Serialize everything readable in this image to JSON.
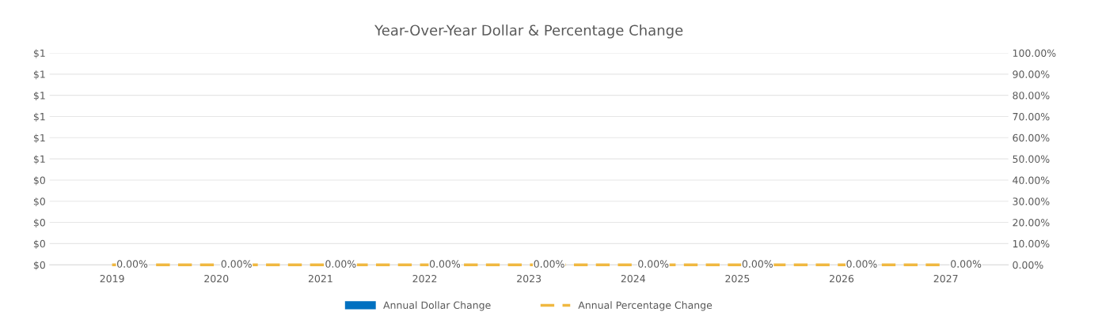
{
  "chart_data": {
    "type": "bar",
    "title": "Year-Over-Year Dollar & Percentage Change",
    "categories": [
      "2019",
      "2020",
      "2021",
      "2022",
      "2023",
      "2024",
      "2025",
      "2026",
      "2027"
    ],
    "series": [
      {
        "name": "Annual Dollar Change",
        "color": "#0070c0",
        "values": [
          0,
          0,
          0,
          0,
          0,
          0,
          0,
          0,
          0
        ]
      },
      {
        "name": "Annual Percentage Change",
        "type": "line",
        "axis": "y2",
        "color": "#f0b840",
        "line_style": "dashed",
        "values": [
          0,
          0,
          0,
          0,
          0,
          0,
          0,
          0,
          0
        ],
        "value_labels": [
          "0.00%",
          "0.00%",
          "0.00%",
          "0.00%",
          "0.00%",
          "0.00%",
          "0.00%",
          "0.00%",
          "0.00%"
        ]
      }
    ],
    "ylim": [
      0,
      1
    ],
    "yticks": [
      {
        "value": 0,
        "label": "$0"
      },
      {
        "value": 0.1,
        "label": "$0"
      },
      {
        "value": 0.2,
        "label": "$0"
      },
      {
        "value": 0.3,
        "label": "$0"
      },
      {
        "value": 0.4,
        "label": "$0"
      },
      {
        "value": 0.5,
        "label": "$1"
      },
      {
        "value": 0.6,
        "label": "$1"
      },
      {
        "value": 0.7,
        "label": "$1"
      },
      {
        "value": 0.8,
        "label": "$1"
      },
      {
        "value": 0.9,
        "label": "$1"
      },
      {
        "value": 1,
        "label": "$1"
      }
    ],
    "y2lim": [
      0,
      100
    ],
    "y2ticks": [
      {
        "value": 0,
        "label": "0.00%"
      },
      {
        "value": 10,
        "label": "10.00%"
      },
      {
        "value": 20,
        "label": "20.00%"
      },
      {
        "value": 30,
        "label": "30.00%"
      },
      {
        "value": 40,
        "label": "40.00%"
      },
      {
        "value": 50,
        "label": "50.00%"
      },
      {
        "value": 60,
        "label": "60.00%"
      },
      {
        "value": 70,
        "label": "70.00%"
      },
      {
        "value": 80,
        "label": "80.00%"
      },
      {
        "value": 90,
        "label": "90.00%"
      },
      {
        "value": 100,
        "label": "100.00%"
      }
    ],
    "grid": "y",
    "legend": "bottom"
  }
}
